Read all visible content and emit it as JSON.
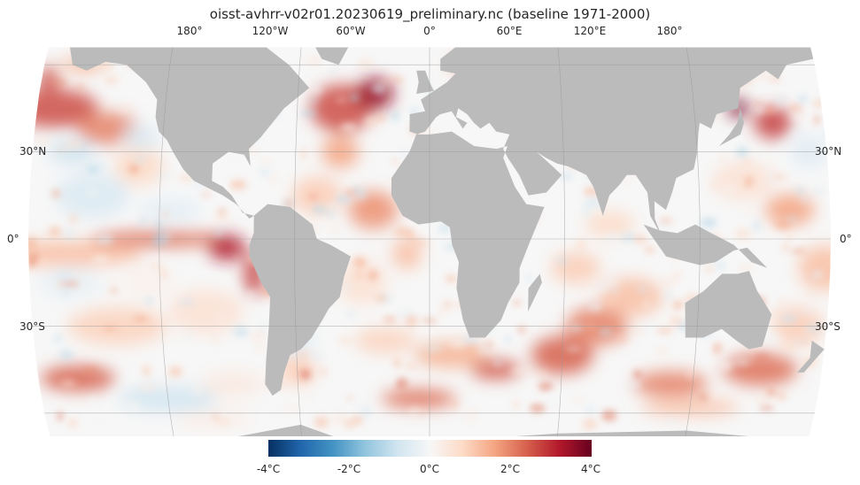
{
  "title": "oisst-avhrr-v02r01.20230619_preliminary.nc (baseline 1971-2000)",
  "longitude_labels": [
    "180°",
    "120°W",
    "60°W",
    "0°",
    "60°E",
    "120°E",
    "180°"
  ],
  "latitude_labels": {
    "left": [
      "30°N",
      "0°",
      "30°S"
    ],
    "right": [
      "30°N",
      "0°",
      "30°S"
    ]
  },
  "colorbar": {
    "colormap": "RdBu_r",
    "min": -4,
    "max": 4,
    "unit": "°C",
    "tick_labels": [
      "-4°C",
      "-2°C",
      "0°C",
      "2°C",
      "4°C"
    ],
    "colors": [
      "#053061",
      "#2166ac",
      "#4393c3",
      "#92c5de",
      "#d1e5f0",
      "#f7f7f7",
      "#fddbc7",
      "#f4a582",
      "#d6604d",
      "#b2182b",
      "#67001f"
    ]
  },
  "colors": {
    "land": "#bbbbbb",
    "gridline": "#999999",
    "ocean_background": "#f7f7f7"
  }
}
